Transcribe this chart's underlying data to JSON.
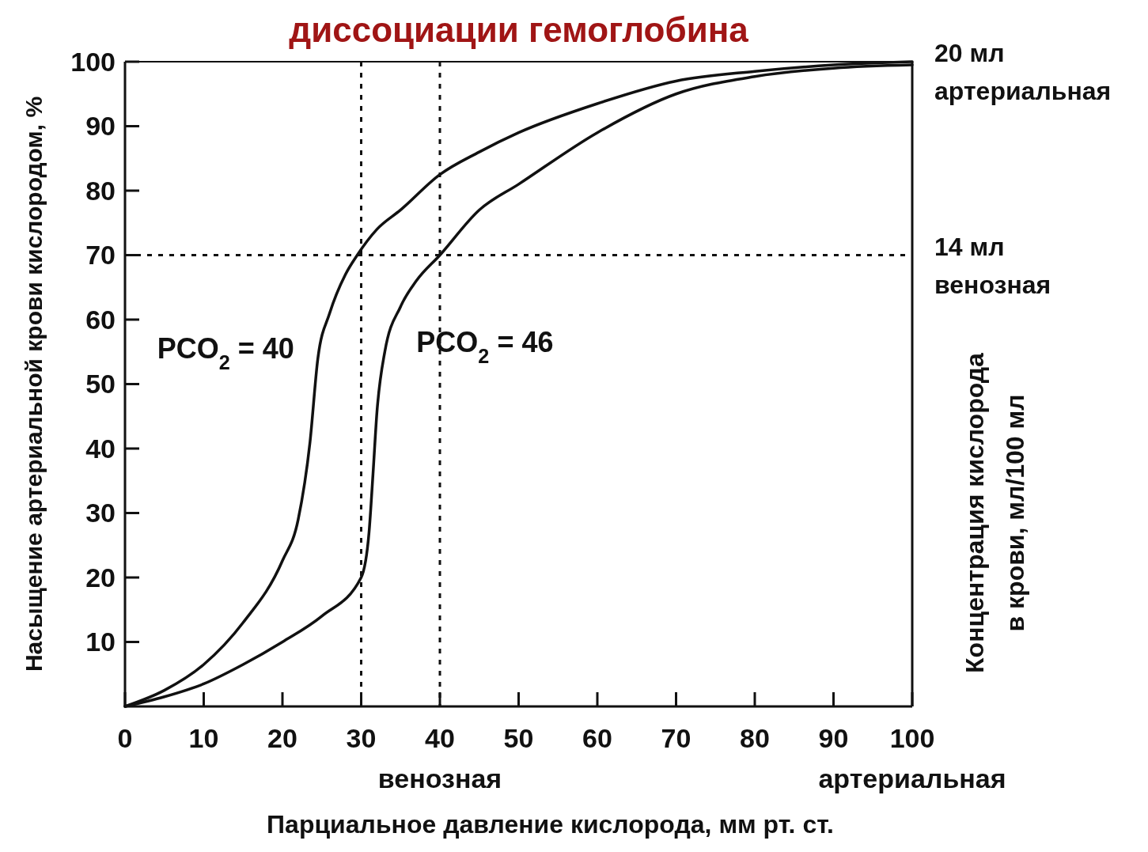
{
  "chart_data": {
    "type": "line",
    "title": "диссоциации гемоглобина",
    "xlabel": "Парциальное давление кислорода, мм рт. ст.",
    "ylabel": "Насыщение артериальной крови кислородом, %",
    "y2label": "Концентрация кислорода\nв крови, мл/100 мл",
    "xlim": [
      0,
      100
    ],
    "ylim": [
      0,
      100
    ],
    "y2lim": [
      0,
      20
    ],
    "xticks": [
      0,
      10,
      20,
      30,
      {
        "value": 40,
        "label": "40\nвенозная"
      },
      50,
      60,
      70,
      80,
      90,
      {
        "value": 100,
        "label": "100\nартериальная"
      }
    ],
    "yticks": [
      10,
      20,
      30,
      40,
      50,
      60,
      70,
      80,
      90,
      100
    ],
    "y2ticks": [
      {
        "value": 20,
        "label": "20 мл\nартериальная"
      },
      {
        "value": 14,
        "label": "14 мл\nвенозная"
      }
    ],
    "grid": false,
    "marker": "none",
    "line_style": "solid",
    "series": [
      {
        "name": "PCO$_{2}$ = 40",
        "color": "#111111",
        "x": [
          0,
          5,
          10,
          15,
          20,
          22,
          23.5,
          24.5,
          26,
          28,
          29.5,
          32,
          35,
          40,
          45,
          50,
          60,
          70,
          80,
          90,
          100
        ],
        "values": [
          0,
          2.5,
          6.5,
          13,
          22.6,
          29,
          41,
          54,
          61,
          67,
          70,
          74,
          77,
          82.5,
          86,
          89,
          93.5,
          97,
          98.5,
          99.5,
          100
        ]
      },
      {
        "name": "PCO$_{2}$ = 46",
        "color": "#111111",
        "x": [
          0,
          5,
          10,
          15,
          20,
          25,
          30,
          31,
          31.5,
          32,
          33,
          35,
          37,
          40,
          45,
          50,
          60,
          70,
          80,
          90,
          100
        ],
        "values": [
          0,
          1.5,
          3.5,
          6.5,
          10,
          14,
          20,
          27,
          36,
          45.6,
          55,
          62,
          66,
          70,
          77,
          81,
          89,
          95,
          97.7,
          99,
          99.5
        ]
      }
    ],
    "ref_lines": [
      {
        "axis": "x",
        "value": 30,
        "line_style": "dotted"
      },
      {
        "axis": "x",
        "value": 40,
        "line_style": "dotted"
      },
      {
        "axis": "y",
        "value": 70,
        "line_style": "dotted"
      }
    ]
  }
}
